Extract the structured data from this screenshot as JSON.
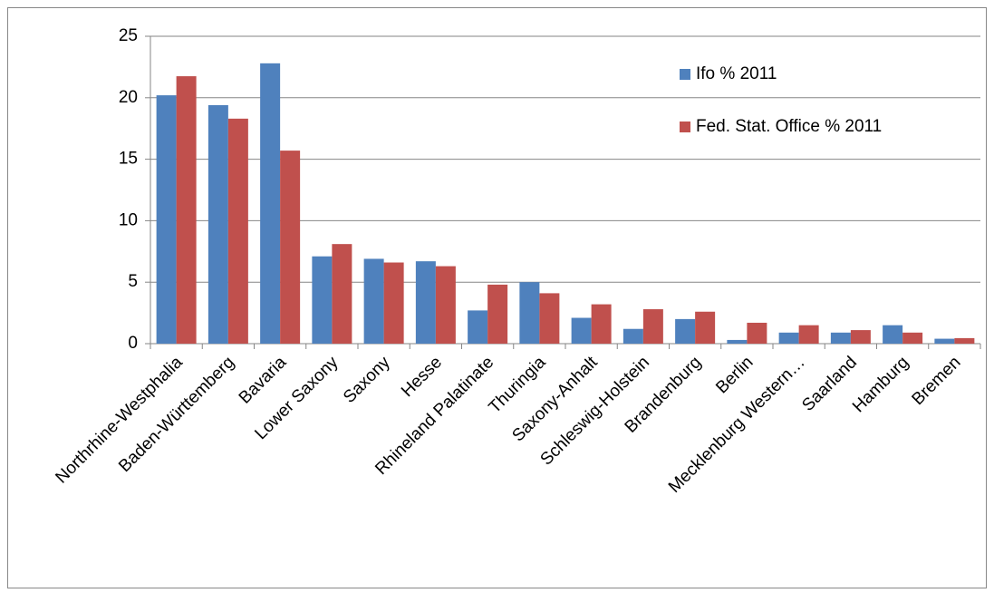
{
  "chart_data": {
    "type": "bar",
    "categories": [
      "Northrhine-Westphalia",
      "Baden-Württemberg",
      "Bavaria",
      "Lower Saxony",
      "Saxony",
      "Hesse",
      "Rhineland Palatinate",
      "Thuringia",
      "Saxony-Anhalt",
      "Schleswig-Holstein",
      "Brandenburg",
      "Berlin",
      "Mecklenburg Western…",
      "Saarland",
      "Hamburg",
      "Bremen"
    ],
    "series": [
      {
        "name": "Ifo % 2011",
        "color": "#4f81bd",
        "values": [
          20.2,
          19.4,
          22.8,
          7.1,
          6.9,
          6.7,
          2.7,
          5.0,
          2.1,
          1.2,
          2.0,
          0.3,
          0.9,
          0.9,
          1.5,
          0.4
        ]
      },
      {
        "name": "Fed. Stat. Office % 2011",
        "color": "#c0504d",
        "values": [
          21.75,
          18.3,
          15.7,
          8.1,
          6.6,
          6.3,
          4.8,
          4.1,
          3.2,
          2.8,
          2.6,
          1.7,
          1.5,
          1.1,
          0.9,
          0.45
        ]
      }
    ],
    "ylim": [
      0,
      25
    ],
    "yticks": [
      0,
      5,
      10,
      15,
      20,
      25
    ],
    "grid": true
  }
}
